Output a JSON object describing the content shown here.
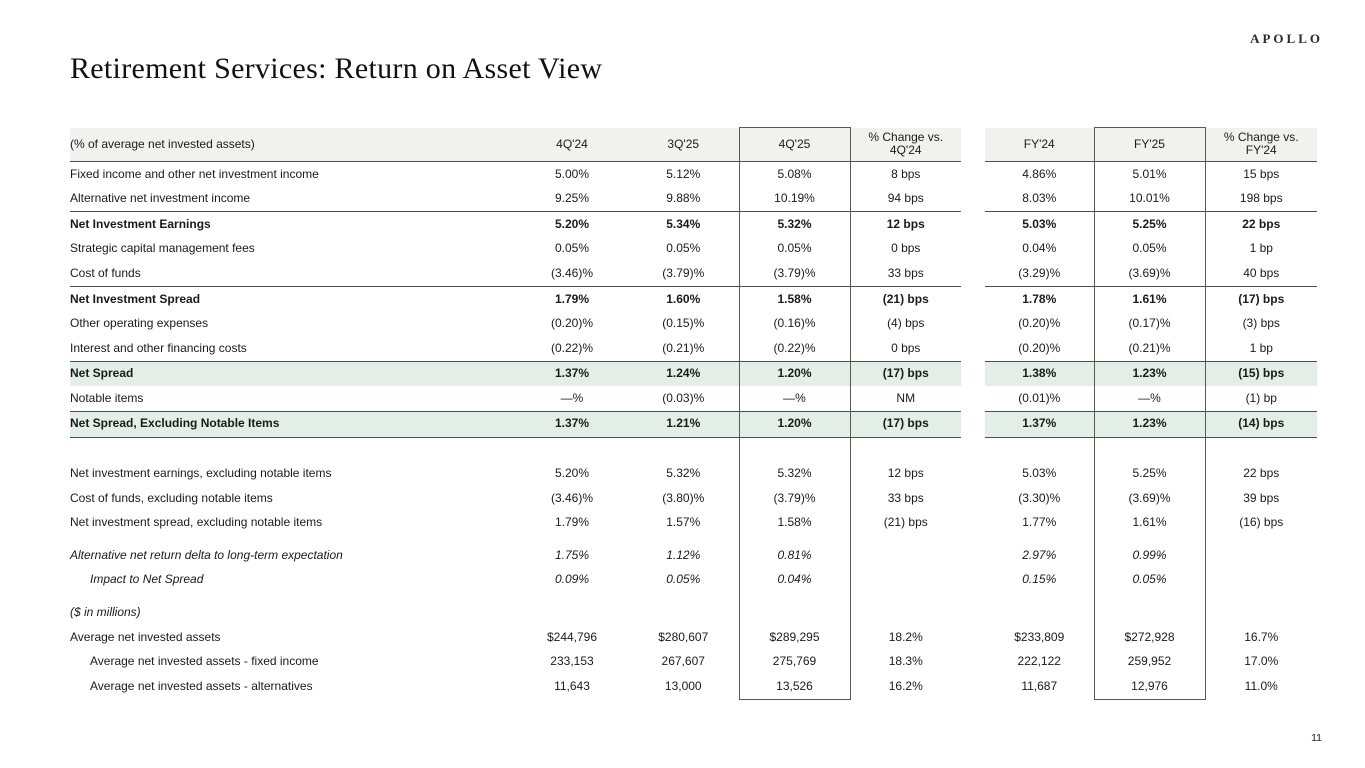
{
  "slide": {
    "logo": "APOLLO",
    "title": "Retirement Services: Return on Asset View",
    "page_number": "11"
  },
  "colors": {
    "header_bg": "#f1f1ef",
    "highlight_green": "#e3eee8",
    "rule_line": "#4d4d4d",
    "box_border": "#595959"
  },
  "table": {
    "left_header": "(% of average net invested assets)",
    "columns": [
      "4Q'24",
      "3Q'25",
      "4Q'25",
      "% Change vs.\n4Q'24",
      "FY'24",
      "FY'25",
      "% Change vs.\nFY'24"
    ],
    "rows": [
      {
        "label": "Fixed income and other net investment income",
        "values": [
          "5.00%",
          "5.12%",
          "5.08%",
          "8 bps",
          "4.86%",
          "5.01%",
          "15 bps"
        ]
      },
      {
        "label": "Alternative net investment income",
        "values": [
          "9.25%",
          "9.88%",
          "10.19%",
          "94 bps",
          "8.03%",
          "10.01%",
          "198 bps"
        ]
      },
      {
        "label": "Net Investment Earnings",
        "bold": true,
        "line_top": true,
        "values": [
          "5.20%",
          "5.34%",
          "5.32%",
          "12 bps",
          "5.03%",
          "5.25%",
          "22 bps"
        ]
      },
      {
        "label": "Strategic capital management fees",
        "values": [
          "0.05%",
          "0.05%",
          "0.05%",
          "0 bps",
          "0.04%",
          "0.05%",
          "1 bp"
        ]
      },
      {
        "label": "Cost of funds",
        "values": [
          "(3.46)%",
          "(3.79)%",
          "(3.79)%",
          "33 bps",
          "(3.29)%",
          "(3.69)%",
          "40 bps"
        ]
      },
      {
        "label": "Net Investment Spread",
        "bold": true,
        "line_top": true,
        "values": [
          "1.79%",
          "1.60%",
          "1.58%",
          "(21) bps",
          "1.78%",
          "1.61%",
          "(17) bps"
        ]
      },
      {
        "label": "Other operating expenses",
        "values": [
          "(0.20)%",
          "(0.15)%",
          "(0.16)%",
          "(4) bps",
          "(0.20)%",
          "(0.17)%",
          "(3) bps"
        ]
      },
      {
        "label": "Interest and other financing costs",
        "values": [
          "(0.22)%",
          "(0.21)%",
          "(0.22)%",
          "0 bps",
          "(0.20)%",
          "(0.21)%",
          "1 bp"
        ]
      },
      {
        "label": "Net Spread",
        "bold": true,
        "green": true,
        "line_top": true,
        "values": [
          "1.37%",
          "1.24%",
          "1.20%",
          "(17) bps",
          "1.38%",
          "1.23%",
          "(15) bps"
        ]
      },
      {
        "label": "Notable items",
        "values": [
          "—%",
          "(0.03)%",
          "—%",
          "NM",
          "(0.01)%",
          "—%",
          "(1) bp"
        ]
      },
      {
        "label": "Net Spread, Excluding Notable Items",
        "bold": true,
        "green": true,
        "line_top": true,
        "line_bottom": true,
        "values": [
          "1.37%",
          "1.21%",
          "1.20%",
          "(17) bps",
          "1.37%",
          "1.23%",
          "(14) bps"
        ]
      },
      {
        "spacer": true,
        "h": 24
      },
      {
        "label": "Net investment earnings, excluding notable items",
        "values": [
          "5.20%",
          "5.32%",
          "5.32%",
          "12 bps",
          "5.03%",
          "5.25%",
          "22 bps"
        ]
      },
      {
        "label": "Cost of funds, excluding notable items",
        "values": [
          "(3.46)%",
          "(3.80)%",
          "(3.79)%",
          "33 bps",
          "(3.30)%",
          "(3.69)%",
          "39 bps"
        ]
      },
      {
        "label": "Net investment spread, excluding notable items",
        "values": [
          "1.79%",
          "1.57%",
          "1.58%",
          "(21) bps",
          "1.77%",
          "1.61%",
          "(16) bps"
        ]
      },
      {
        "spacer": true,
        "h": 8
      },
      {
        "label": "Alternative net return delta to long-term expectation",
        "italic": true,
        "values": [
          "1.75%",
          "1.12%",
          "0.81%",
          "",
          "2.97%",
          "0.99%",
          ""
        ]
      },
      {
        "label": "Impact to Net Spread",
        "italic": true,
        "indent": 1,
        "values": [
          "0.09%",
          "0.05%",
          "0.04%",
          "",
          "0.15%",
          "0.05%",
          ""
        ]
      },
      {
        "spacer": true,
        "h": 8
      },
      {
        "label": "($ in millions)",
        "italic": true,
        "values": [
          "",
          "",
          "",
          "",
          "",
          "",
          ""
        ]
      },
      {
        "label": "Average net invested assets",
        "values": [
          "$244,796",
          "$280,607",
          "$289,295",
          "18.2%",
          "$233,809",
          "$272,928",
          "16.7%"
        ]
      },
      {
        "label": "Average net invested assets - fixed income",
        "indent": 1,
        "values": [
          "233,153",
          "267,607",
          "275,769",
          "18.3%",
          "222,122",
          "259,952",
          "17.0%"
        ]
      },
      {
        "label": "Average net invested assets - alternatives",
        "indent": 1,
        "values": [
          "11,643",
          "13,000",
          "13,526",
          "16.2%",
          "11,687",
          "12,976",
          "11.0%"
        ]
      }
    ]
  }
}
